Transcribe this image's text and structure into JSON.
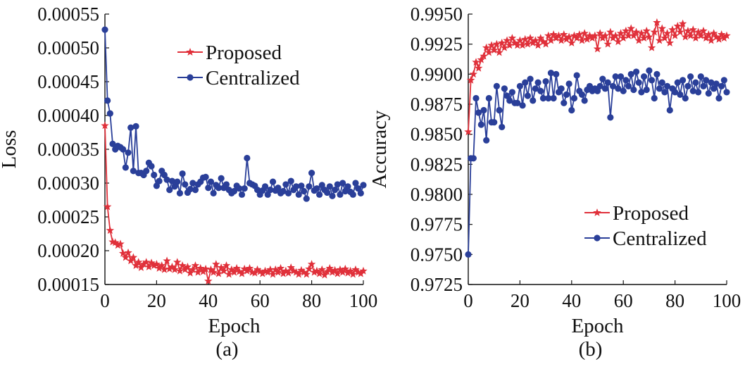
{
  "colors": {
    "proposed": "#e0303a",
    "centralized": "#2a3f99"
  },
  "chart_data": [
    {
      "type": "line",
      "panel": "(a)",
      "xlabel": "Epoch",
      "ylabel": "Loss",
      "xlim": [
        0,
        100
      ],
      "ylim": [
        0.00015,
        0.00055
      ],
      "xticks": [
        0,
        20,
        40,
        60,
        80,
        100
      ],
      "xtick_labels": [
        "0",
        "20",
        "40",
        "60",
        "80",
        "100"
      ],
      "yticks": [
        0.00015,
        0.0002,
        0.00025,
        0.0003,
        0.00035,
        0.0004,
        0.00045,
        0.0005,
        0.00055
      ],
      "ytick_labels": [
        "0.00015",
        "0.00020",
        "0.00025",
        "0.00030",
        "0.00035",
        "0.00040",
        "0.00045",
        "0.00050",
        "0.00055"
      ],
      "grid": false,
      "legend_position": "top-right",
      "series": [
        {
          "name": "Proposed",
          "marker": "star",
          "x": [
            0,
            1,
            2,
            3,
            4,
            5,
            6,
            7,
            8,
            9,
            10,
            11,
            12,
            13,
            14,
            15,
            16,
            17,
            18,
            19,
            20,
            21,
            22,
            23,
            24,
            25,
            26,
            27,
            28,
            29,
            30,
            31,
            32,
            33,
            34,
            35,
            36,
            37,
            38,
            39,
            40,
            41,
            42,
            43,
            44,
            45,
            46,
            47,
            48,
            49,
            50,
            51,
            52,
            53,
            54,
            55,
            56,
            57,
            58,
            59,
            60,
            61,
            62,
            63,
            64,
            65,
            66,
            67,
            68,
            69,
            70,
            71,
            72,
            73,
            74,
            75,
            76,
            77,
            78,
            79,
            80,
            81,
            82,
            83,
            84,
            85,
            86,
            87,
            88,
            89,
            90,
            91,
            92,
            93,
            94,
            95,
            96,
            97,
            98,
            99,
            100
          ],
          "values": [
            0.000385,
            0.000265,
            0.00023,
            0.000213,
            0.000212,
            0.000208,
            0.00021,
            0.000196,
            0.00019,
            0.000197,
            0.000185,
            0.00019,
            0.000178,
            0.000183,
            0.000175,
            0.00018,
            0.000183,
            0.000176,
            0.000182,
            0.000178,
            0.00018,
            0.000174,
            0.000178,
            0.000172,
            0.000185,
            0.000173,
            0.000176,
            0.000172,
            0.000183,
            0.00017,
            0.000178,
            0.000172,
            0.000176,
            0.000167,
            0.000172,
            0.000178,
            0.000168,
            0.000174,
            0.000169,
            0.000173,
            0.000155,
            0.000172,
            0.000168,
            0.00018,
            0.000166,
            0.000175,
            0.00017,
            0.000178,
            0.000165,
            0.000172,
            0.000168,
            0.000174,
            0.000169,
            0.000166,
            0.000173,
            0.00017,
            0.000174,
            0.000168,
            0.000167,
            0.000172,
            0.000169,
            0.000166,
            0.00017,
            0.000168,
            0.000172,
            0.000165,
            0.000172,
            0.000168,
            0.000174,
            0.000166,
            0.00017,
            0.000167,
            0.000175,
            0.00017,
            0.000168,
            0.000165,
            0.000171,
            0.000168,
            0.000165,
            0.000173,
            0.00018,
            0.000168,
            0.00017,
            0.000166,
            0.000172,
            0.000164,
            0.000169,
            0.000174,
            0.000168,
            0.000171,
            0.000166,
            0.000172,
            0.000168,
            0.000173,
            0.000167,
            0.00017,
            0.000165,
            0.000172,
            0.000168,
            0.000166,
            0.00017
          ]
        },
        {
          "name": "Centralized",
          "marker": "circle",
          "x": [
            0,
            1,
            2,
            3,
            4,
            5,
            6,
            7,
            8,
            9,
            10,
            11,
            12,
            13,
            14,
            15,
            16,
            17,
            18,
            19,
            20,
            21,
            22,
            23,
            24,
            25,
            26,
            27,
            28,
            29,
            30,
            31,
            32,
            33,
            34,
            35,
            36,
            37,
            38,
            39,
            40,
            41,
            42,
            43,
            44,
            45,
            46,
            47,
            48,
            49,
            50,
            51,
            52,
            53,
            54,
            55,
            56,
            57,
            58,
            59,
            60,
            61,
            62,
            63,
            64,
            65,
            66,
            67,
            68,
            69,
            70,
            71,
            72,
            73,
            74,
            75,
            76,
            77,
            78,
            79,
            80,
            81,
            82,
            83,
            84,
            85,
            86,
            87,
            88,
            89,
            90,
            91,
            92,
            93,
            94,
            95,
            96,
            97,
            98,
            99,
            100
          ],
          "values": [
            0.000527,
            0.000422,
            0.000403,
            0.000358,
            0.00035,
            0.000355,
            0.000353,
            0.00035,
            0.000323,
            0.000345,
            0.000382,
            0.000318,
            0.000384,
            0.000315,
            0.000315,
            0.000312,
            0.000318,
            0.00033,
            0.000325,
            0.000312,
            0.000296,
            0.000303,
            0.000318,
            0.000312,
            0.000305,
            0.00029,
            0.000303,
            0.000295,
            0.000302,
            0.000285,
            0.000314,
            0.000298,
            0.000286,
            0.000291,
            0.0003,
            0.00029,
            0.000298,
            0.000302,
            0.000308,
            0.000309,
            0.000293,
            0.000302,
            0.000285,
            0.000297,
            0.000293,
            0.000307,
            0.000293,
            0.000298,
            0.00029,
            0.000285,
            0.000288,
            0.000296,
            0.000292,
            0.000283,
            0.000292,
            0.000337,
            0.0003,
            0.000298,
            0.000296,
            0.00029,
            0.000283,
            0.000289,
            0.000295,
            0.000283,
            0.00029,
            0.000302,
            0.000289,
            0.000293,
            0.000285,
            0.000288,
            0.000298,
            0.000285,
            0.000303,
            0.00029,
            0.000295,
            0.000283,
            0.000296,
            0.000288,
            0.000277,
            0.000295,
            0.000315,
            0.000289,
            0.000292,
            0.000283,
            0.000297,
            0.00029,
            0.000286,
            0.000295,
            0.000281,
            0.00029,
            0.000298,
            0.000283,
            0.0003,
            0.000288,
            0.000295,
            0.000287,
            0.000283,
            0.0003,
            0.000292,
            0.000285,
            0.000297
          ]
        }
      ]
    },
    {
      "type": "line",
      "panel": "(b)",
      "xlabel": "Epoch",
      "ylabel": "Accuracy",
      "xlim": [
        0,
        100
      ],
      "ylim": [
        0.9725,
        0.995
      ],
      "xticks": [
        0,
        20,
        40,
        60,
        80,
        100
      ],
      "xtick_labels": [
        "0",
        "20",
        "40",
        "60",
        "80",
        "100"
      ],
      "yticks": [
        0.9725,
        0.975,
        0.9775,
        0.98,
        0.9825,
        0.985,
        0.9875,
        0.99,
        0.9925,
        0.995
      ],
      "ytick_labels": [
        "0.9725",
        "0.9750",
        "0.9775",
        "0.9800",
        "0.9825",
        "0.9850",
        "0.9875",
        "0.9900",
        "0.9925",
        "0.9950"
      ],
      "grid": false,
      "legend_position": "bottom-right",
      "series": [
        {
          "name": "Proposed",
          "marker": "star",
          "x": [
            0,
            1,
            2,
            3,
            4,
            5,
            6,
            7,
            8,
            9,
            10,
            11,
            12,
            13,
            14,
            15,
            16,
            17,
            18,
            19,
            20,
            21,
            22,
            23,
            24,
            25,
            26,
            27,
            28,
            29,
            30,
            31,
            32,
            33,
            34,
            35,
            36,
            37,
            38,
            39,
            40,
            41,
            42,
            43,
            44,
            45,
            46,
            47,
            48,
            49,
            50,
            51,
            52,
            53,
            54,
            55,
            56,
            57,
            58,
            59,
            60,
            61,
            62,
            63,
            64,
            65,
            66,
            67,
            68,
            69,
            70,
            71,
            72,
            73,
            74,
            75,
            76,
            77,
            78,
            79,
            80,
            81,
            82,
            83,
            84,
            85,
            86,
            87,
            88,
            89,
            90,
            91,
            92,
            93,
            94,
            95,
            96,
            97,
            98,
            99,
            100
          ],
          "values": [
            0.9852,
            0.9895,
            0.99,
            0.991,
            0.9905,
            0.9912,
            0.9915,
            0.9922,
            0.9918,
            0.9924,
            0.992,
            0.9925,
            0.9918,
            0.9926,
            0.9922,
            0.9928,
            0.9924,
            0.993,
            0.9926,
            0.9924,
            0.9928,
            0.9924,
            0.9929,
            0.9925,
            0.993,
            0.9926,
            0.9928,
            0.9924,
            0.993,
            0.9927,
            0.9925,
            0.9932,
            0.9928,
            0.9933,
            0.993,
            0.9932,
            0.9928,
            0.9933,
            0.9929,
            0.9931,
            0.9926,
            0.9932,
            0.993,
            0.9933,
            0.9928,
            0.9934,
            0.9929,
            0.9932,
            0.993,
            0.9932,
            0.9921,
            0.9934,
            0.993,
            0.9932,
            0.9925,
            0.9935,
            0.993,
            0.9932,
            0.9927,
            0.9934,
            0.993,
            0.9936,
            0.9932,
            0.9938,
            0.9932,
            0.9935,
            0.9928,
            0.9934,
            0.993,
            0.9936,
            0.9931,
            0.9922,
            0.9935,
            0.9943,
            0.9928,
            0.9938,
            0.993,
            0.9934,
            0.9926,
            0.9937,
            0.9932,
            0.994,
            0.9935,
            0.9942,
            0.9931,
            0.9936,
            0.9932,
            0.9937,
            0.993,
            0.9935,
            0.9932,
            0.9936,
            0.993,
            0.9933,
            0.9928,
            0.9934,
            0.9931,
            0.9929,
            0.9933,
            0.993,
            0.9932
          ]
        },
        {
          "name": "Centralized",
          "marker": "circle",
          "x": [
            0,
            1,
            2,
            3,
            4,
            5,
            6,
            7,
            8,
            9,
            10,
            11,
            12,
            13,
            14,
            15,
            16,
            17,
            18,
            19,
            20,
            21,
            22,
            23,
            24,
            25,
            26,
            27,
            28,
            29,
            30,
            31,
            32,
            33,
            34,
            35,
            36,
            37,
            38,
            39,
            40,
            41,
            42,
            43,
            44,
            45,
            46,
            47,
            48,
            49,
            50,
            51,
            52,
            53,
            54,
            55,
            56,
            57,
            58,
            59,
            60,
            61,
            62,
            63,
            64,
            65,
            66,
            67,
            68,
            69,
            70,
            71,
            72,
            73,
            74,
            75,
            76,
            77,
            78,
            79,
            80,
            81,
            82,
            83,
            84,
            85,
            86,
            87,
            88,
            89,
            90,
            91,
            92,
            93,
            94,
            95,
            96,
            97,
            98,
            99,
            100
          ],
          "values": [
            0.975,
            0.983,
            0.983,
            0.988,
            0.9868,
            0.9858,
            0.987,
            0.9845,
            0.988,
            0.986,
            0.986,
            0.989,
            0.987,
            0.9856,
            0.9888,
            0.9882,
            0.9878,
            0.9885,
            0.9876,
            0.9876,
            0.989,
            0.9874,
            0.9893,
            0.9882,
            0.9896,
            0.9878,
            0.9888,
            0.9893,
            0.9886,
            0.988,
            0.9894,
            0.988,
            0.9901,
            0.988,
            0.99,
            0.9885,
            0.9888,
            0.9876,
            0.9883,
            0.9892,
            0.987,
            0.988,
            0.9899,
            0.9886,
            0.9883,
            0.9878,
            0.9887,
            0.989,
            0.9886,
            0.9888,
            0.9886,
            0.989,
            0.9896,
            0.9888,
            0.9893,
            0.9864,
            0.989,
            0.9898,
            0.9888,
            0.9898,
            0.9886,
            0.9895,
            0.989,
            0.99,
            0.9887,
            0.9902,
            0.9893,
            0.9885,
            0.9898,
            0.9887,
            0.9903,
            0.9895,
            0.988,
            0.99,
            0.9888,
            0.9893,
            0.9885,
            0.989,
            0.987,
            0.9888,
            0.9885,
            0.9893,
            0.9883,
            0.9895,
            0.988,
            0.989,
            0.9898,
            0.9886,
            0.9893,
            0.9885,
            0.9898,
            0.989,
            0.9895,
            0.9884,
            0.9893,
            0.9888,
            0.9892,
            0.988,
            0.989,
            0.9895,
            0.9885
          ]
        }
      ]
    }
  ]
}
